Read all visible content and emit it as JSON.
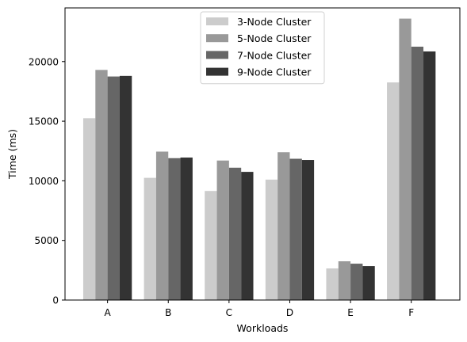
{
  "chart_data": {
    "type": "bar",
    "title": "",
    "xlabel": "Workloads",
    "ylabel": "Time (ms)",
    "categories": [
      "A",
      "B",
      "C",
      "D",
      "E",
      "F"
    ],
    "ylim": [
      0,
      24500
    ],
    "yticks": [
      0,
      5000,
      10000,
      15000,
      20000
    ],
    "grid": false,
    "legend_position": "top-center",
    "series": [
      {
        "name": "3-Node Cluster",
        "color": "#cccccc",
        "values": [
          15250,
          10250,
          9150,
          10100,
          2650,
          18250
        ]
      },
      {
        "name": "5-Node Cluster",
        "color": "#999999",
        "values": [
          19300,
          12450,
          11700,
          12400,
          3250,
          23600
        ]
      },
      {
        "name": "7-Node Cluster",
        "color": "#666666",
        "values": [
          18750,
          11900,
          11100,
          11850,
          3050,
          21250
        ]
      },
      {
        "name": "9-Node Cluster",
        "color": "#333333",
        "values": [
          18800,
          11950,
          10750,
          11750,
          2850,
          20850
        ]
      }
    ]
  }
}
